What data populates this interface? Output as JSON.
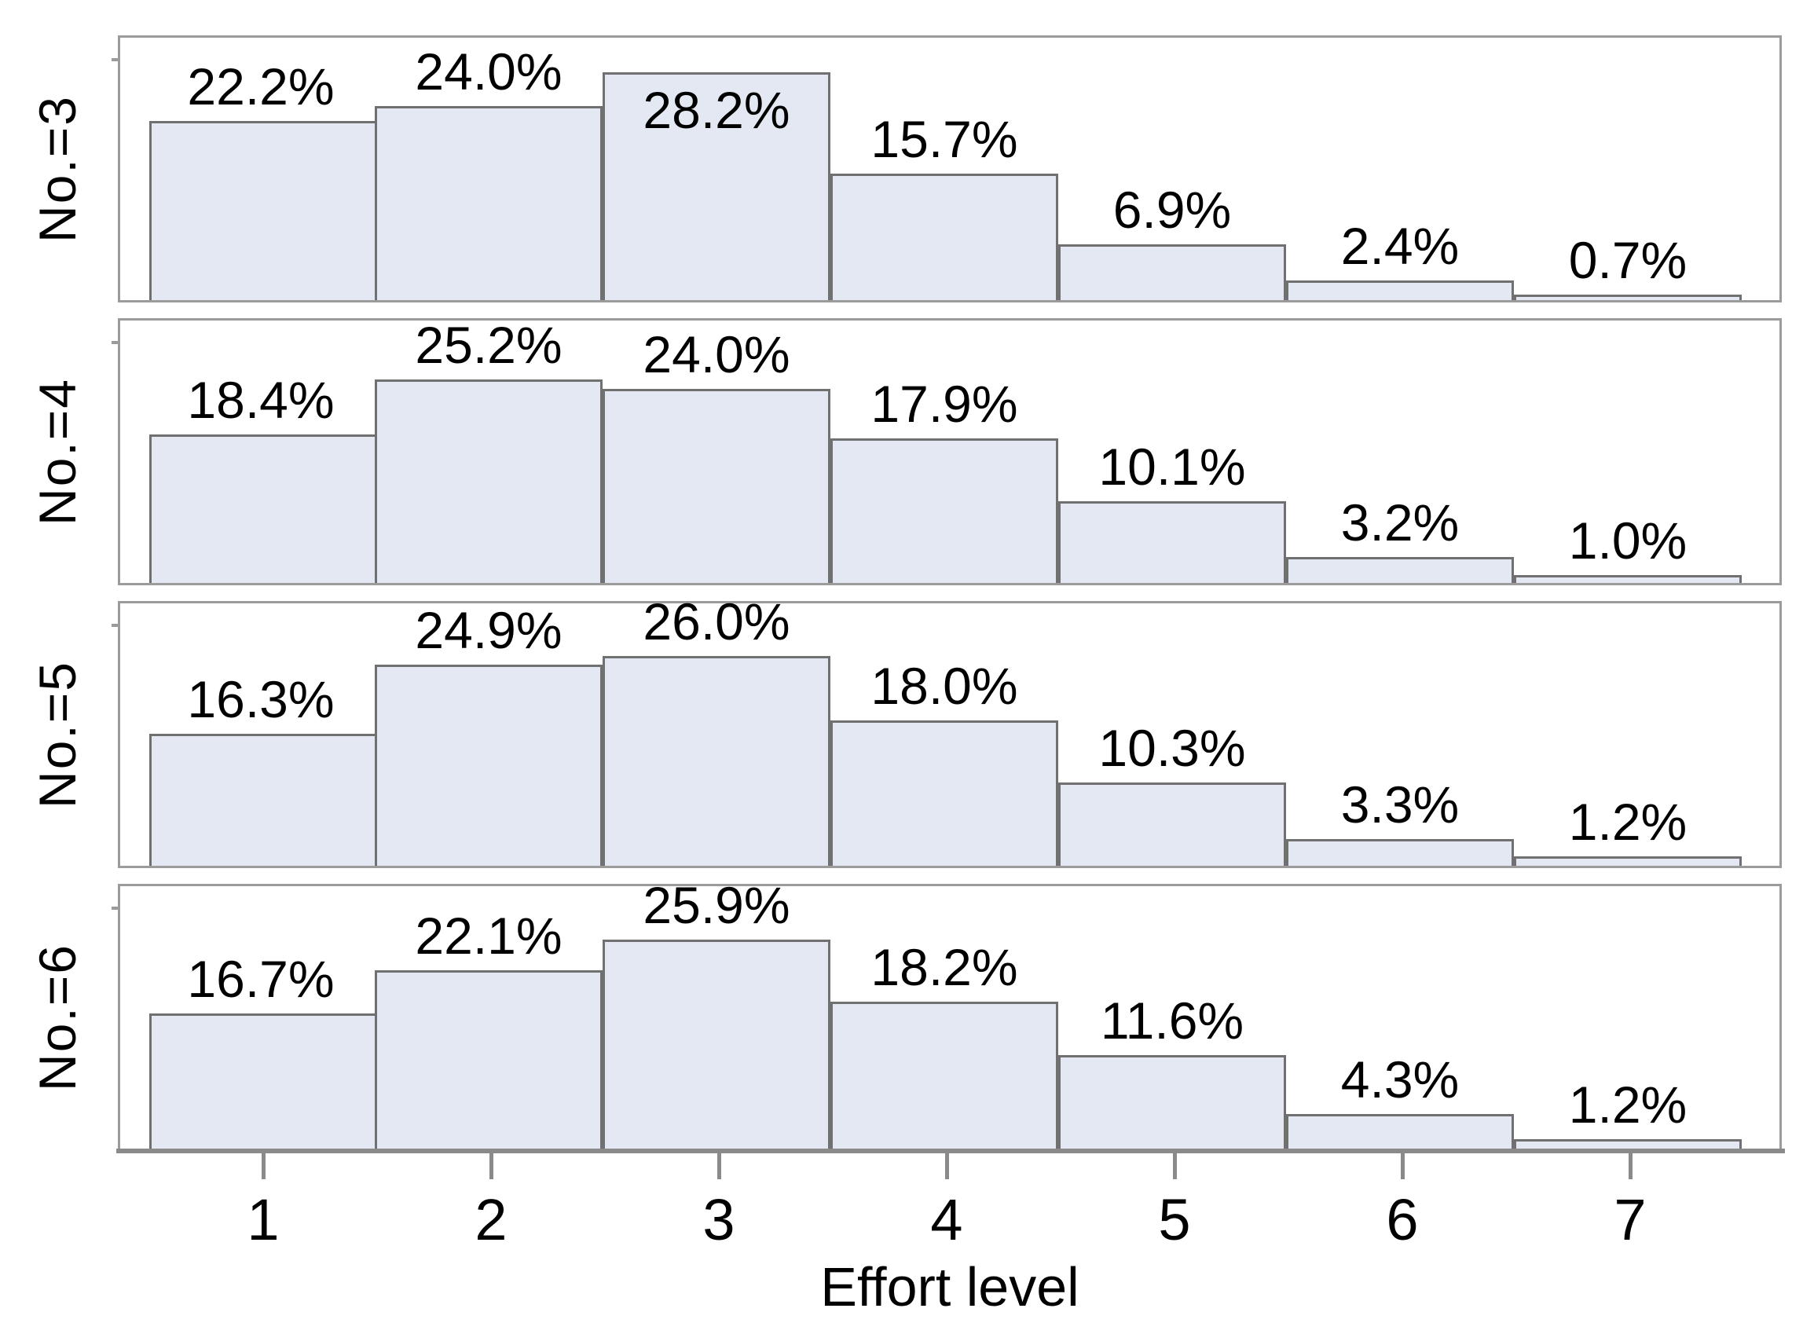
{
  "chart_data": {
    "type": "bar",
    "variant": "faceted-histogram",
    "title": "",
    "xlabel": "Effort level",
    "ylabel": "",
    "x_categories": [
      "1",
      "2",
      "3",
      "4",
      "5",
      "6",
      "7"
    ],
    "ylim": [
      0,
      32.5
    ],
    "grid": false,
    "legend": "none",
    "value_suffix": "%",
    "panels": [
      {
        "label": "No.=3",
        "values": [
          22.2,
          24.0,
          28.2,
          15.7,
          6.9,
          2.4,
          0.7
        ]
      },
      {
        "label": "No.=4",
        "values": [
          18.4,
          25.2,
          24.0,
          17.9,
          10.1,
          3.2,
          1.0
        ]
      },
      {
        "label": "No.=5",
        "values": [
          16.3,
          24.9,
          26.0,
          18.0,
          10.3,
          3.3,
          1.2
        ]
      },
      {
        "label": "No.=6",
        "values": [
          16.7,
          22.1,
          25.9,
          18.2,
          11.6,
          4.3,
          1.2
        ]
      }
    ],
    "colors": {
      "bar_fill": "#e3e8f2",
      "bar_border": "#707070",
      "panel_border": "#9b9b9b",
      "axis": "#8a8a8a",
      "text": "#000000",
      "background": "#ffffff"
    }
  }
}
